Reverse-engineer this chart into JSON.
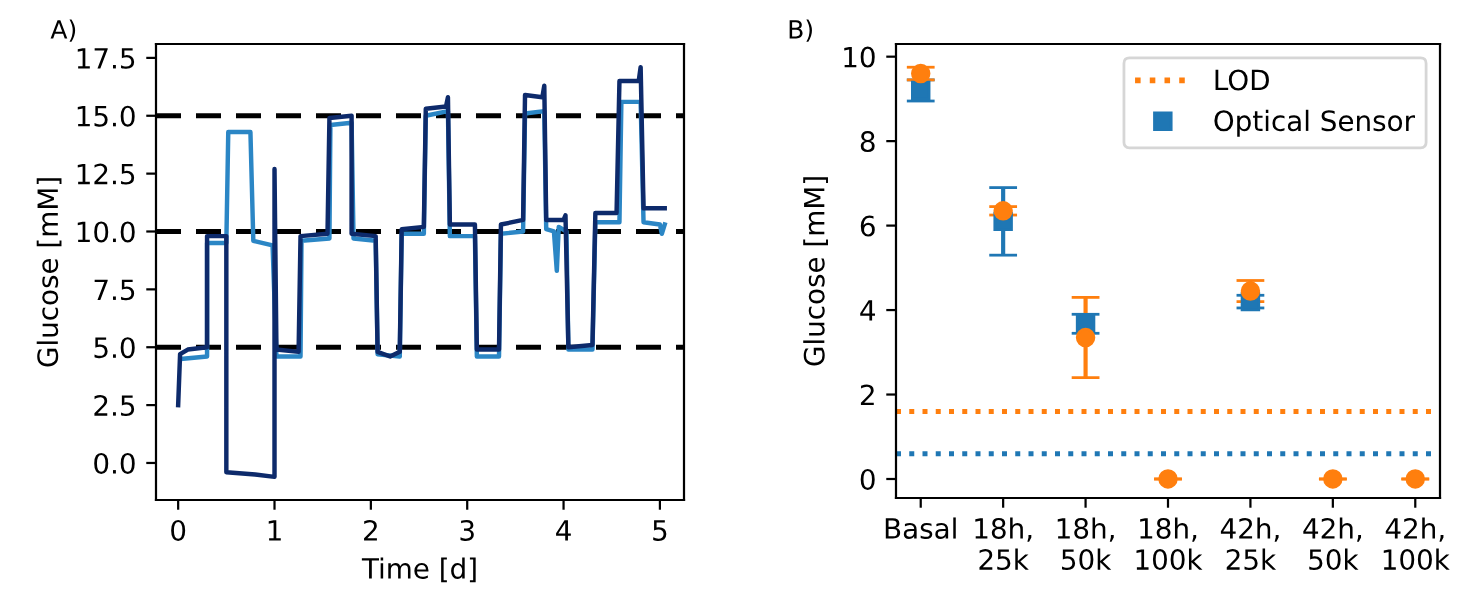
{
  "chart_data": [
    {
      "type": "line",
      "title": "A)",
      "xlabel": "Time [d]",
      "ylabel": "Glucose [mM]",
      "xlim": [
        -0.23,
        5.25
      ],
      "ylim": [
        -1.6,
        18.1
      ],
      "xticks": [
        0,
        1,
        2,
        3,
        4,
        5
      ],
      "yticks": [
        {
          "value": 0,
          "label": "0.0"
        },
        {
          "value": 2.5,
          "label": "2.5"
        },
        {
          "value": 5,
          "label": "5.0"
        },
        {
          "value": 7.5,
          "label": "7.5"
        },
        {
          "value": 10,
          "label": "10.0"
        },
        {
          "value": 12.5,
          "label": "12.5"
        },
        {
          "value": 15,
          "label": "15.0"
        },
        {
          "value": 17.5,
          "label": "17.5"
        }
      ],
      "grid": false,
      "legend": false,
      "ref_lines": [
        {
          "axis": "y",
          "value": 5,
          "color": "#000000",
          "line_style": "dashed"
        },
        {
          "axis": "y",
          "value": 10,
          "color": "#000000",
          "line_style": "dashed"
        },
        {
          "axis": "y",
          "value": 15,
          "color": "#000000",
          "line_style": "dashed"
        }
      ],
      "series": [
        {
          "color": "#2b86c5",
          "x": [
            0.05,
            0.3,
            0.3,
            0.5,
            0.52,
            0.75,
            0.78,
            0.98,
            1.02,
            1.27,
            1.28,
            1.57,
            1.58,
            1.8,
            1.82,
            2.05,
            2.07,
            2.3,
            2.32,
            2.55,
            2.57,
            2.8,
            2.82,
            3.08,
            3.1,
            3.33,
            3.35,
            3.58,
            3.6,
            3.8,
            3.82,
            3.9,
            3.93,
            3.95,
            4.03,
            4.05,
            4.3,
            4.33,
            4.58,
            4.6,
            4.8,
            4.83,
            5.0,
            5.02,
            5.05
          ],
          "values": [
            4.5,
            4.6,
            9.5,
            9.5,
            14.3,
            14.3,
            9.6,
            9.4,
            4.6,
            4.6,
            9.6,
            9.7,
            14.6,
            14.7,
            9.7,
            9.6,
            4.7,
            4.6,
            9.9,
            9.9,
            15.0,
            15.2,
            9.8,
            9.8,
            4.6,
            4.6,
            9.9,
            10.0,
            15.1,
            15.2,
            10.1,
            10.0,
            8.3,
            10.2,
            10.0,
            4.9,
            4.9,
            10.4,
            10.4,
            15.6,
            15.6,
            10.4,
            10.3,
            9.9,
            10.3
          ]
        },
        {
          "color": "#0d2a6b",
          "x": [
            0,
            0.02,
            0.1,
            0.3,
            0.3,
            0.5,
            0.5,
            0.8,
            1.0,
            1.0,
            1.02,
            1.25,
            1.27,
            1.55,
            1.57,
            1.8,
            1.8,
            2.05,
            2.07,
            2.2,
            2.3,
            2.32,
            2.55,
            2.57,
            2.78,
            2.8,
            2.82,
            3.08,
            3.1,
            3.33,
            3.35,
            3.58,
            3.6,
            3.78,
            3.8,
            3.82,
            4.0,
            4.02,
            4.05,
            4.3,
            4.33,
            4.55,
            4.58,
            4.78,
            4.8,
            4.83,
            5.05
          ],
          "values": [
            2.5,
            4.7,
            4.9,
            5.0,
            9.8,
            9.8,
            -0.4,
            -0.5,
            -0.6,
            12.7,
            4.9,
            4.8,
            9.8,
            9.9,
            14.9,
            15.0,
            9.9,
            9.8,
            4.8,
            4.6,
            4.8,
            10.1,
            10.2,
            15.3,
            15.4,
            15.8,
            10.3,
            10.3,
            4.9,
            4.9,
            10.3,
            10.5,
            15.9,
            15.8,
            16.3,
            10.5,
            10.5,
            10.7,
            5.0,
            5.1,
            10.8,
            10.8,
            16.5,
            16.5,
            17.1,
            11.0,
            11.0
          ]
        }
      ]
    },
    {
      "type": "scatter",
      "title": "B)",
      "ylabel": "Glucose [mM]",
      "ylim": [
        -0.45,
        10.3
      ],
      "yticks": [
        0,
        2,
        4,
        6,
        8,
        10
      ],
      "grid": false,
      "legend": "top right",
      "categories": [
        "Basal",
        "18h,\n25k",
        "18h,\n50k",
        "18h,\n100k",
        "42h,\n25k",
        "42h,\n50k",
        "42h,\n100k"
      ],
      "ref_lines": [
        {
          "axis": "y",
          "value": 1.6,
          "color": "#ff7f0e",
          "line_style": "dotted",
          "label": "LOD"
        },
        {
          "axis": "y",
          "value": 0.6,
          "color": "#1f77b4",
          "line_style": "dotted"
        }
      ],
      "series": [
        {
          "name": "Optical Sensor",
          "color": "#1f77b4",
          "marker": "square",
          "values": [
            9.2,
            6.1,
            3.7,
            null,
            4.2,
            null,
            null
          ],
          "errors": [
            [
              8.95,
              9.45
            ],
            [
              5.3,
              6.9
            ],
            [
              3.45,
              3.9
            ],
            null,
            [
              4.05,
              4.35
            ],
            null,
            null
          ]
        },
        {
          "color": "#ff7f0e",
          "marker": "circle",
          "values": [
            9.6,
            6.35,
            3.35,
            0,
            4.45,
            0,
            0
          ],
          "errors": [
            [
              9.45,
              9.75
            ],
            [
              6.25,
              6.45
            ],
            [
              2.4,
              4.3
            ],
            null,
            [
              4.2,
              4.7
            ],
            null,
            null
          ]
        }
      ]
    }
  ]
}
